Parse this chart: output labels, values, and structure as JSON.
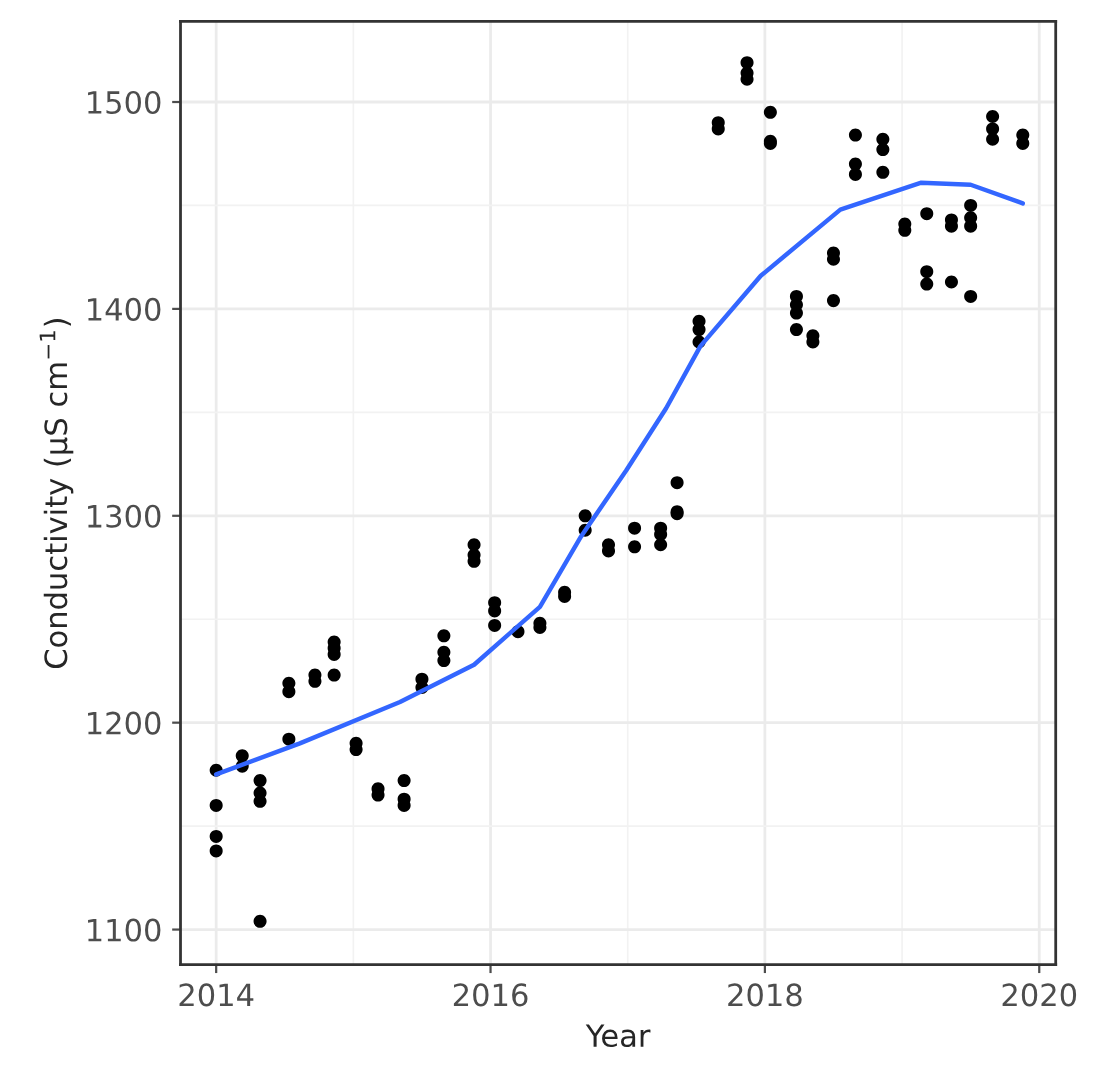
{
  "chart_data": {
    "type": "scatter",
    "xlabel": "Year",
    "ylabel": "Conductivity (µS cm$^{−1}$)",
    "xlim": [
      2013.74,
      2020.12
    ],
    "ylim": [
      1083,
      1539
    ],
    "xticks": [
      2014,
      2016,
      2018,
      2020
    ],
    "yticks": [
      1100,
      1200,
      1300,
      1400,
      1500
    ],
    "grid": true,
    "legend": false,
    "series": [
      {
        "color": "#000000",
        "marker": "circle",
        "x": [
          2014.0,
          2014.0,
          2014.0,
          2014.0,
          2014.19,
          2014.19,
          2014.32,
          2014.32,
          2014.32,
          2014.32,
          2014.53,
          2014.53,
          2014.53,
          2014.72,
          2014.72,
          2014.86,
          2014.86,
          2014.86,
          2014.86,
          2015.02,
          2015.02,
          2015.18,
          2015.18,
          2015.37,
          2015.37,
          2015.37,
          2015.5,
          2015.5,
          2015.66,
          2015.66,
          2015.66,
          2015.88,
          2015.88,
          2015.88,
          2016.03,
          2016.03,
          2016.03,
          2016.2,
          2016.36,
          2016.36,
          2016.54,
          2016.54,
          2016.69,
          2016.69,
          2016.86,
          2016.86,
          2017.05,
          2017.05,
          2017.24,
          2017.24,
          2017.24,
          2017.36,
          2017.36,
          2017.36,
          2017.52,
          2017.52,
          2017.52,
          2017.66,
          2017.66,
          2017.87,
          2017.87,
          2017.87,
          2018.04,
          2018.04,
          2018.04,
          2018.23,
          2018.23,
          2018.23,
          2018.23,
          2018.35,
          2018.35,
          2018.5,
          2018.5,
          2018.5,
          2018.66,
          2018.66,
          2018.66,
          2018.86,
          2018.86,
          2018.86,
          2019.02,
          2019.02,
          2019.18,
          2019.18,
          2019.18,
          2019.36,
          2019.36,
          2019.36,
          2019.5,
          2019.5,
          2019.5,
          2019.5,
          2019.66,
          2019.66,
          2019.66,
          2019.88,
          2019.88
        ],
        "values": [
          1177,
          1160,
          1145,
          1138,
          1184,
          1179,
          1172,
          1166,
          1162,
          1104,
          1219,
          1215,
          1192,
          1223,
          1220,
          1239,
          1236,
          1233,
          1223,
          1190,
          1187,
          1168,
          1165,
          1172,
          1163,
          1160,
          1221,
          1217,
          1242,
          1234,
          1230,
          1286,
          1281,
          1278,
          1258,
          1254,
          1247,
          1244,
          1248,
          1246,
          1263,
          1261,
          1300,
          1293,
          1286,
          1283,
          1294,
          1285,
          1294,
          1291,
          1286,
          1316,
          1302,
          1301,
          1394,
          1390,
          1384,
          1490,
          1487,
          1519,
          1514,
          1511,
          1495,
          1481,
          1480,
          1406,
          1402,
          1398,
          1390,
          1387,
          1384,
          1427,
          1424,
          1404,
          1484,
          1470,
          1465,
          1482,
          1477,
          1466,
          1441,
          1438,
          1446,
          1418,
          1412,
          1443,
          1440,
          1413,
          1450,
          1444,
          1440,
          1406,
          1493,
          1487,
          1482,
          1484,
          1480
        ]
      },
      {
        "type": "line",
        "color": "#3366ff",
        "line_style": "solid",
        "x": [
          2014.0,
          2014.61,
          2015.34,
          2015.88,
          2016.36,
          2016.66,
          2016.99,
          2017.28,
          2017.53,
          2017.97,
          2018.55,
          2019.14,
          2019.5,
          2019.88
        ],
        "values": [
          1175,
          1190,
          1210,
          1228,
          1256,
          1290,
          1322,
          1352,
          1382,
          1416,
          1448,
          1461,
          1460,
          1451
        ]
      }
    ]
  }
}
